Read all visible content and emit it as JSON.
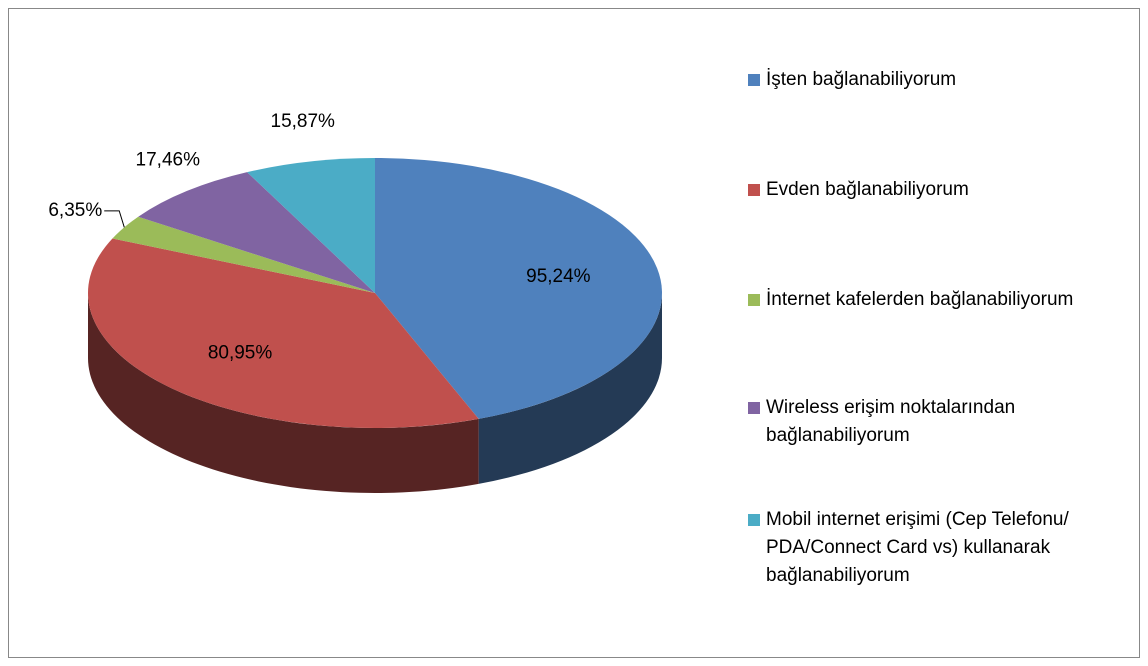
{
  "chart_data": {
    "type": "pie3d",
    "categories": [
      "İşten bağlanabiliyorum",
      "Evden bağlanabiliyorum",
      "İnternet kafelerden bağlanabiliyorum",
      "Wireless erişim noktalarından bağlanabiliyorum",
      "Mobil internet erişimi (Cep Telefonu/ PDA/Connect Card vs) kullanarak bağlanabiliyorum"
    ],
    "values": [
      95.24,
      80.95,
      6.35,
      17.46,
      15.87
    ],
    "value_labels": [
      "95,24%",
      "80,95%",
      "6,35%",
      "17,46%",
      "15,87%"
    ],
    "colors": [
      "#4f81bd",
      "#c0504d",
      "#9bbb59",
      "#8064a2",
      "#4bacc6"
    ],
    "legend": "right"
  }
}
